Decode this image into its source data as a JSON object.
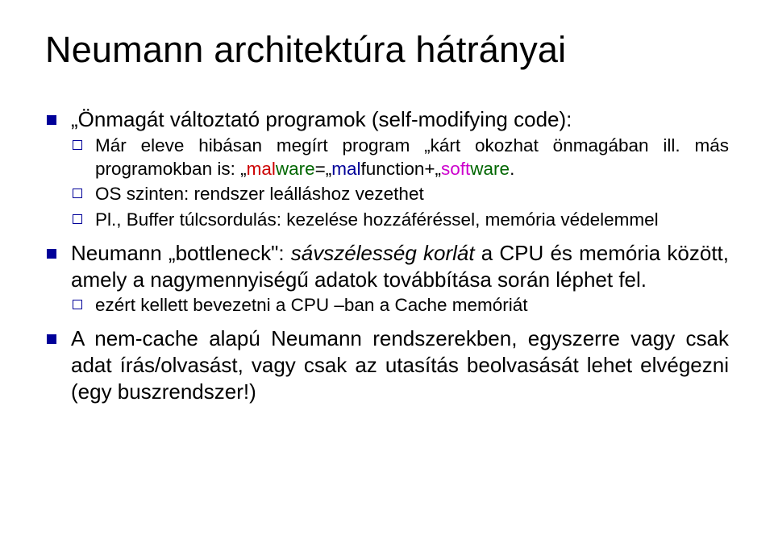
{
  "title": "Neumann architektúra hátrányai",
  "b1": {
    "head": "„Önmagát változtató programok (self-modifying code):",
    "sub1": "Már eleve hibásan megírt program „kárt okozhat önmagában ill. más programokban is: „",
    "mw_mal": "mal",
    "mw_ware1": "ware",
    "mw_eq": "=„",
    "mw_mal2": "mal",
    "mw_func": "function",
    "mw_plus": "+„",
    "mw_soft": "soft",
    "mw_ware2": "ware",
    "mw_end": ".",
    "sub2": "OS szinten: rendszer leálláshoz vezethet",
    "sub3": "Pl., Buffer túlcsordulás: kezelése hozzáféréssel, memória védelemmel"
  },
  "b2": {
    "pre": "Neumann „bottleneck\": ",
    "ital": "sávszélesség korlát",
    "post": " a  CPU és memória között, amely a nagymennyiségű adatok továbbítása során léphet fel.",
    "sub1": "ezért kellett bevezetni a CPU –ban a Cache memóriát"
  },
  "b3": "A nem-cache alapú Neumann rendszerekben, egyszerre vagy csak adat írás/olvasást, vagy csak az utasítás beolvasását lehet elvégezni (egy buszrendszer!)",
  "colors": {
    "bullet": "#000099",
    "red": "#cc0000",
    "green": "#006600",
    "blue": "#000099",
    "pink": "#cc00cc",
    "text": "#000000",
    "bg": "#ffffff"
  },
  "sizes": {
    "title_pt": 45,
    "lvl1_pt": 26,
    "lvl2_pt": 22.5
  }
}
